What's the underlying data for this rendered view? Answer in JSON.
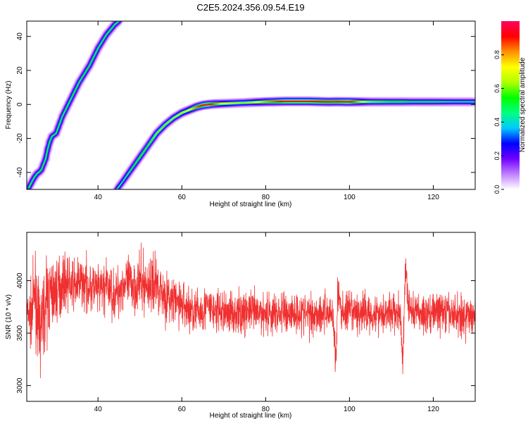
{
  "page_title": "C2E5.2024.356.09.54.E19",
  "chart_data": [
    {
      "type": "heatmap",
      "title": "C2E5.2024.356.09.54.E19",
      "xlabel": "Height of straight line (km)",
      "ylabel": "Frequency (Hz)",
      "xlim": [
        23,
        130
      ],
      "ylim": [
        -50,
        49
      ],
      "x_ticks": [
        40,
        60,
        80,
        100,
        120
      ],
      "x_tick_labels": [
        "40",
        "60",
        "80",
        "100",
        "120"
      ],
      "y_ticks": [
        -40,
        -20,
        0,
        20,
        40
      ],
      "y_tick_labels": [
        "-40",
        "-20",
        "0",
        "20",
        "40"
      ],
      "grid": false,
      "colorbar": {
        "label": "Normalized spectral amplitude",
        "range": [
          0,
          1
        ],
        "ticks": [
          0.0,
          0.2,
          0.4,
          0.6,
          0.8
        ],
        "tick_labels": [
          "0.0",
          "0.2",
          "0.4",
          "0.6",
          "0.8"
        ],
        "colormap": [
          "#ffffff",
          "#c080ff",
          "#7000ff",
          "#0000ff",
          "#00c8ff",
          "#00ff80",
          "#00ff00",
          "#b0ff00",
          "#ffff00",
          "#ff9000",
          "#ff0000",
          "#ff0060"
        ]
      },
      "traces": [
        {
          "x": [
            23.5,
            24.3,
            25.3,
            26.4,
            27.5,
            28.2,
            28.9,
            30.0,
            31.5,
            33.5,
            35.5,
            38.0,
            40.0,
            42.0,
            44.0,
            45.0
          ],
          "y": [
            -49,
            -45,
            -41,
            -39,
            -32,
            -24,
            -19,
            -17,
            -7,
            3,
            13,
            23,
            33,
            41,
            47,
            49
          ],
          "peak": 0.5
        },
        {
          "x": [
            44.5,
            46,
            48,
            50,
            52,
            54,
            56,
            58,
            60,
            62,
            63.5,
            65,
            66.5,
            68,
            70,
            75,
            80,
            85,
            90,
            95,
            97,
            100,
            105,
            110,
            113,
            115,
            120,
            125,
            130
          ],
          "y": [
            -50,
            -45,
            -38,
            -31,
            -24,
            -17,
            -12,
            -8,
            -5,
            -3,
            -1.5,
            -0.5,
            0,
            0.3,
            0.5,
            1,
            1.5,
            1.8,
            1.8,
            1.5,
            1.6,
            1.5,
            1.5,
            1.5,
            1.5,
            1.5,
            1.5,
            1.5,
            1.5
          ],
          "amp": [
            0.45,
            0.45,
            0.5,
            0.55,
            0.55,
            0.6,
            0.6,
            0.62,
            0.65,
            0.72,
            0.85,
            0.92,
            0.95,
            0.85,
            0.7,
            0.6,
            0.8,
            0.95,
            0.95,
            0.9,
            0.9,
            0.95,
            0.6,
            0.55,
            0.55,
            0.5,
            0.5,
            0.45,
            0.45
          ]
        }
      ]
    },
    {
      "type": "line",
      "xlabel": "Height of straight line (km)",
      "ylabel": "SNR (10 * v/v)",
      "xlim": [
        23,
        130
      ],
      "ylim": [
        2850,
        4460
      ],
      "x_ticks": [
        40,
        60,
        80,
        100,
        120
      ],
      "x_tick_labels": [
        "40",
        "60",
        "80",
        "100",
        "120"
      ],
      "y_ticks": [
        3000,
        3500,
        4000
      ],
      "y_tick_labels": [
        "3000",
        "3500",
        "4000"
      ],
      "grid": false,
      "color": "#f03030",
      "series": [
        {
          "x": [
            23,
            24,
            25,
            26,
            28,
            30,
            32,
            34,
            36,
            38,
            40,
            42,
            44,
            46,
            48,
            50,
            52,
            54,
            56,
            58,
            60,
            62,
            64,
            66,
            68,
            70,
            72,
            74,
            76,
            78,
            80,
            82,
            84,
            86,
            88,
            90,
            92,
            94,
            96,
            96.8,
            97.2,
            98,
            100,
            102,
            104,
            106,
            108,
            110,
            112,
            112.8,
            113.3,
            114,
            116,
            118,
            120,
            122,
            124,
            126,
            128,
            130
          ],
          "y": [
            3700,
            3650,
            3900,
            3500,
            3850,
            3900,
            4000,
            3950,
            3980,
            3950,
            3900,
            3950,
            3850,
            3980,
            3950,
            3980,
            3950,
            3980,
            3850,
            3800,
            3780,
            3720,
            3700,
            3750,
            3700,
            3700,
            3700,
            3680,
            3720,
            3680,
            3700,
            3680,
            3700,
            3690,
            3700,
            3680,
            3690,
            3700,
            3700,
            3200,
            3900,
            3700,
            3700,
            3680,
            3700,
            3680,
            3700,
            3700,
            3680,
            3200,
            4150,
            3750,
            3700,
            3680,
            3700,
            3700,
            3680,
            3680,
            3650,
            3700
          ],
          "noise": [
            130,
            250,
            300,
            320,
            320,
            260,
            200,
            200,
            200,
            200,
            200,
            200,
            200,
            210,
            220,
            230,
            230,
            230,
            200,
            190,
            190,
            180,
            180,
            180,
            170,
            170,
            170,
            170,
            170,
            170,
            170,
            170,
            170,
            170,
            170,
            170,
            170,
            170,
            160,
            150,
            180,
            160,
            160,
            160,
            160,
            160,
            160,
            160,
            160,
            150,
            170,
            160,
            160,
            160,
            160,
            160,
            160,
            160,
            160,
            160
          ]
        }
      ]
    }
  ]
}
